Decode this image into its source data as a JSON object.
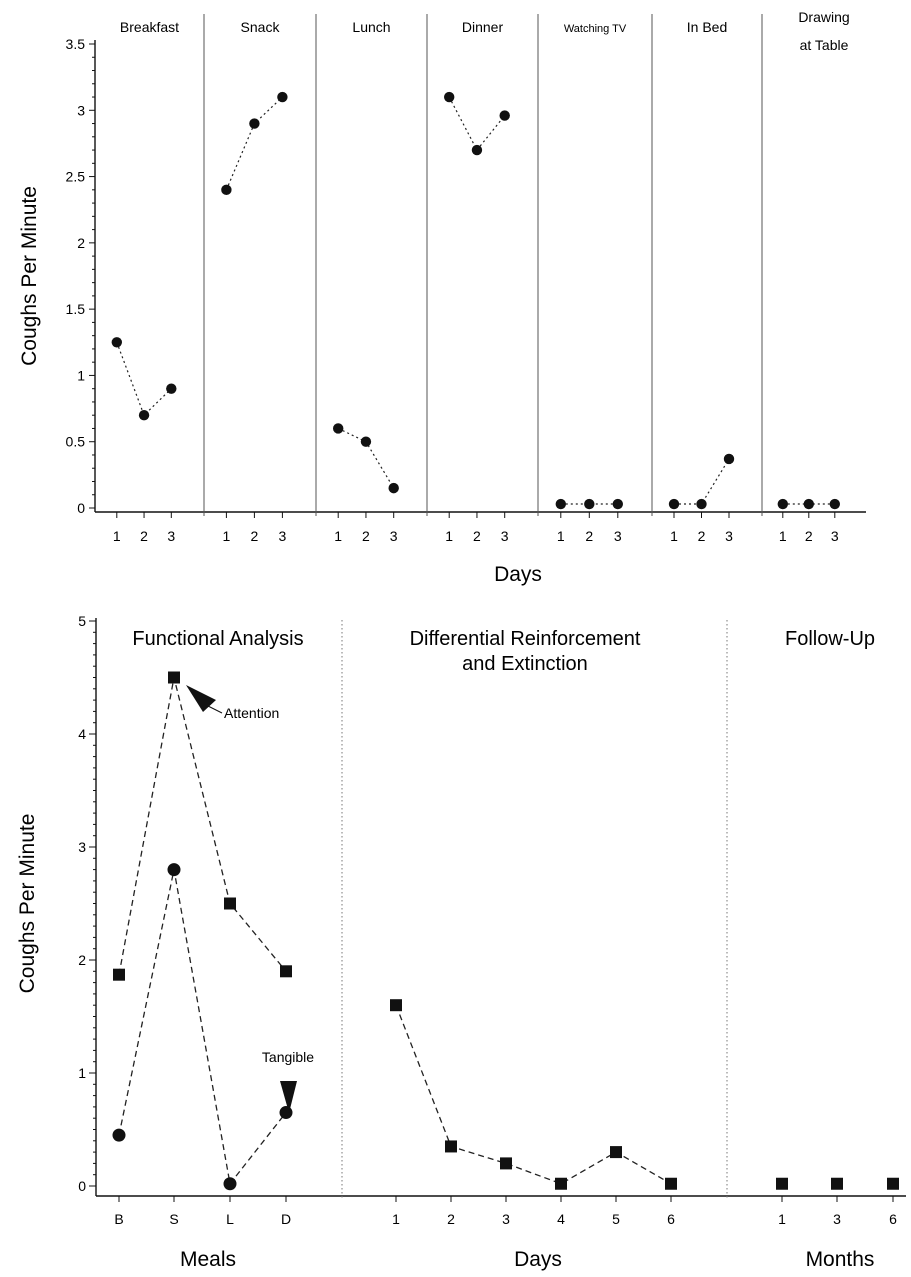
{
  "chart_data": [
    {
      "type": "scatter",
      "ylabel": "Coughs Per Minute",
      "xlabel": "Days",
      "ylim": [
        0,
        3.5
      ],
      "yticks": [
        "0",
        "0.5",
        "1",
        "1.5",
        "2",
        "2.5",
        "3",
        "3.5"
      ],
      "phases": [
        {
          "label": [
            "Breakfast"
          ],
          "ticks": [
            "1",
            "2",
            "3"
          ],
          "values": [
            1.25,
            0.7,
            0.9
          ]
        },
        {
          "label": [
            "Snack"
          ],
          "ticks": [
            "1",
            "2",
            "3"
          ],
          "values": [
            2.4,
            2.9,
            3.1
          ]
        },
        {
          "label": [
            "Lunch"
          ],
          "ticks": [
            "1",
            "2",
            "3"
          ],
          "values": [
            0.6,
            0.5,
            0.15
          ]
        },
        {
          "label": [
            "Dinner"
          ],
          "ticks": [
            "1",
            "2",
            "3"
          ],
          "values": [
            3.1,
            2.7,
            2.96
          ]
        },
        {
          "label": [
            "Watching TV"
          ],
          "ticks": [
            "1",
            "2",
            "3"
          ],
          "values": [
            0.03,
            0.03,
            0.03
          ]
        },
        {
          "label": [
            "In Bed"
          ],
          "ticks": [
            "1",
            "2",
            "3"
          ],
          "values": [
            0.03,
            0.03,
            0.37
          ]
        },
        {
          "label": [
            "Drawing",
            "at Table"
          ],
          "ticks": [
            "1",
            "2",
            "3"
          ],
          "values": [
            0.03,
            0.03,
            0.03
          ]
        }
      ]
    },
    {
      "type": "scatter",
      "ylabel": "Coughs Per Minute",
      "ylim": [
        0,
        5
      ],
      "yticks": [
        "0",
        "1",
        "2",
        "3",
        "4",
        "5"
      ],
      "phases": [
        {
          "label": [
            "Functional Analysis"
          ],
          "xlabel": "Meals",
          "ticks": [
            "B",
            "S",
            "L",
            "D"
          ],
          "series": [
            {
              "name": "Attention",
              "marker": "square",
              "values": [
                1.87,
                4.5,
                2.5,
                1.9
              ]
            },
            {
              "name": "Tangible",
              "marker": "circle",
              "values": [
                0.45,
                2.8,
                0.02,
                0.65
              ]
            }
          ]
        },
        {
          "label": [
            "Differential Reinforcement",
            "and Extinction"
          ],
          "xlabel": "Days",
          "ticks": [
            "1",
            "2",
            "3",
            "4",
            "5",
            "6"
          ],
          "series": [
            {
              "marker": "square",
              "values": [
                1.6,
                0.35,
                0.2,
                0.02,
                0.3,
                0.02
              ]
            }
          ]
        },
        {
          "label": [
            "Follow-Up"
          ],
          "xlabel": "Months",
          "ticks": [
            "1",
            "3",
            "6"
          ],
          "series": [
            {
              "marker": "square",
              "values": [
                0.02,
                0.02,
                0.02
              ]
            }
          ]
        }
      ],
      "annotations": [
        "Attention",
        "Tangible"
      ]
    }
  ]
}
